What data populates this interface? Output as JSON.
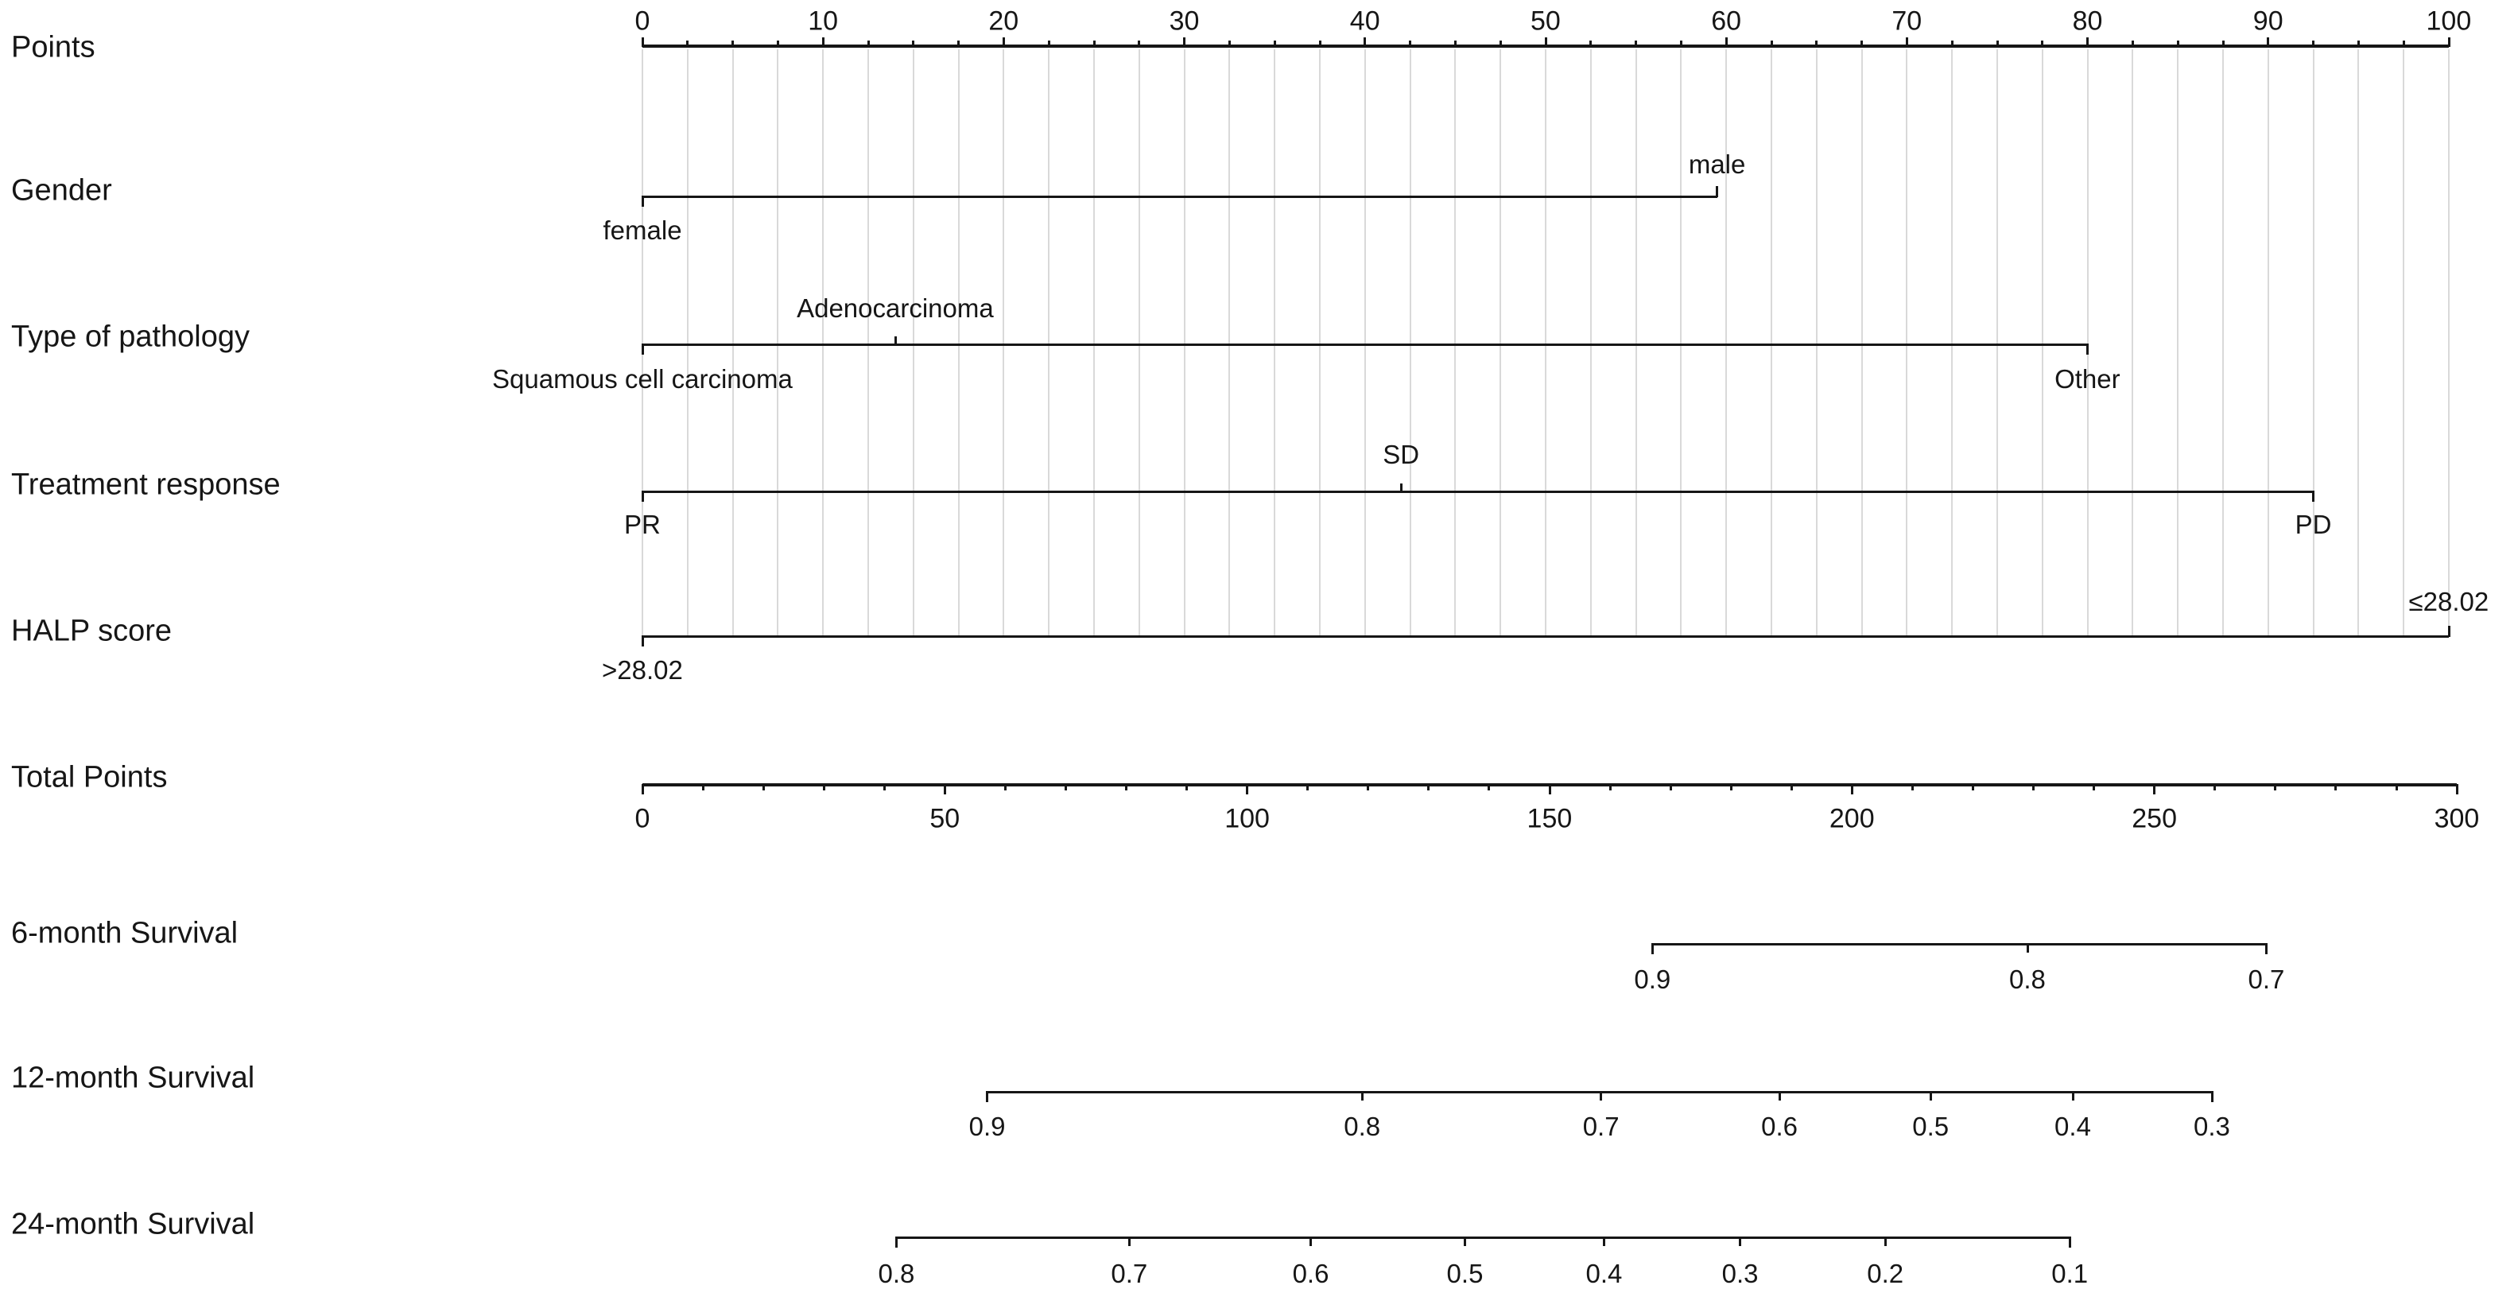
{
  "style": {
    "background_color": "#ffffff",
    "line_color": "#161616",
    "text_color": "#161616",
    "gridline_color": "#d9d9d9"
  },
  "chart_data": {
    "type": "nomogram",
    "points_axis": {
      "label": "Points",
      "min": 0,
      "max": 100,
      "major_tick_step": 10,
      "minor_tick_step": 2.5,
      "tick_labels": [
        "0",
        "10",
        "20",
        "30",
        "40",
        "50",
        "60",
        "70",
        "80",
        "90",
        "100"
      ],
      "labels_position": "above"
    },
    "predictor_rows": [
      {
        "label": "Gender",
        "items": [
          {
            "label": "female",
            "points": 0,
            "label_side": "below"
          },
          {
            "label": "male",
            "points": 59.5,
            "label_side": "above"
          }
        ]
      },
      {
        "label": "Type of pathology",
        "items": [
          {
            "label": "Squamous cell carcinoma",
            "points": 0,
            "label_side": "below"
          },
          {
            "label": "Adenocarcinoma",
            "points": 14,
            "label_side": "above"
          },
          {
            "label": "Other",
            "points": 80,
            "label_side": "below"
          }
        ]
      },
      {
        "label": "Treatment response",
        "items": [
          {
            "label": "PR",
            "points": 0,
            "label_side": "below"
          },
          {
            "label": "SD",
            "points": 42,
            "label_side": "above"
          },
          {
            "label": "PD",
            "points": 92.5,
            "label_side": "below"
          }
        ]
      },
      {
        "label": "HALP score",
        "items": [
          {
            "label": ">28.02",
            "points": 0,
            "label_side": "below"
          },
          {
            "label": "≤28.02",
            "points": 100,
            "label_side": "above"
          }
        ]
      }
    ],
    "total_points_axis": {
      "label": "Total Points",
      "min": 0,
      "max": 300,
      "major_tick_step": 50,
      "minor_tick_step": 10,
      "tick_labels": [
        "0",
        "50",
        "100",
        "150",
        "200",
        "250",
        "300"
      ],
      "labels_position": "below"
    },
    "survival_axes": [
      {
        "label": "6-month Survival",
        "ticks": [
          {
            "label": "0.9",
            "total_points": 167
          },
          {
            "label": "0.8",
            "total_points": 229
          },
          {
            "label": "0.7",
            "total_points": 268.5
          }
        ]
      },
      {
        "label": "12-month Survival",
        "ticks": [
          {
            "label": "0.9",
            "total_points": 57
          },
          {
            "label": "0.8",
            "total_points": 119
          },
          {
            "label": "0.7",
            "total_points": 158.5
          },
          {
            "label": "0.6",
            "total_points": 188
          },
          {
            "label": "0.5",
            "total_points": 213
          },
          {
            "label": "0.4",
            "total_points": 236.5
          },
          {
            "label": "0.3",
            "total_points": 259.5
          }
        ]
      },
      {
        "label": "24-month Survival",
        "ticks": [
          {
            "label": "0.8",
            "total_points": 42
          },
          {
            "label": "0.7",
            "total_points": 80.5
          },
          {
            "label": "0.6",
            "total_points": 110.5
          },
          {
            "label": "0.5",
            "total_points": 136
          },
          {
            "label": "0.4",
            "total_points": 159
          },
          {
            "label": "0.3",
            "total_points": 181.5
          },
          {
            "label": "0.2",
            "total_points": 205.5
          },
          {
            "label": "0.1",
            "total_points": 236
          }
        ]
      }
    ]
  }
}
